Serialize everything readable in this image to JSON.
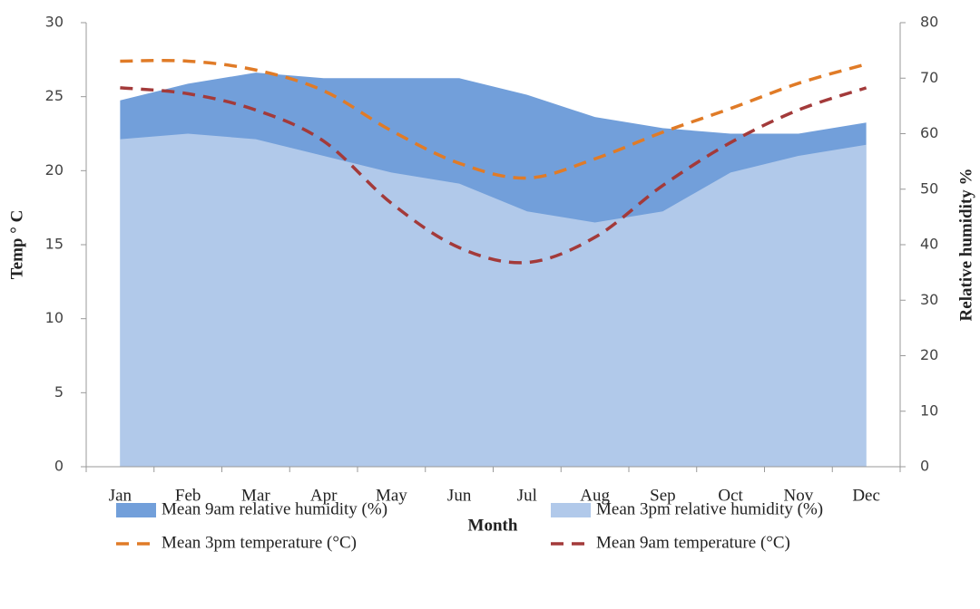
{
  "chart_data": {
    "type": "area-line",
    "x_label": "Month",
    "y_label": "Temp ° C",
    "y2_label": "Relative humidity %",
    "categories": [
      "Jan",
      "Feb",
      "Mar",
      "Apr",
      "May",
      "Jun",
      "Jul",
      "Aug",
      "Sep",
      "Oct",
      "Nov",
      "Dec"
    ],
    "ylim": [
      0,
      30
    ],
    "yticks": [
      0,
      5,
      10,
      15,
      20,
      25,
      30
    ],
    "y2lim": [
      0,
      80
    ],
    "y2ticks": [
      0,
      10,
      20,
      30,
      40,
      50,
      60,
      70,
      80
    ],
    "series": [
      {
        "name": "Mean 9am relative humidity (%)",
        "kind": "area",
        "axis": "y2",
        "color": "#729fda",
        "values": [
          66,
          69,
          71,
          70,
          70,
          70,
          67,
          63,
          61,
          60,
          60,
          62
        ]
      },
      {
        "name": "Mean 3pm relative humidity (%)",
        "kind": "area",
        "axis": "y2",
        "color": "#b1c9ea",
        "values": [
          59,
          60,
          59,
          56,
          53,
          51,
          46,
          44,
          46,
          53,
          56,
          58
        ]
      },
      {
        "name": "Mean 3pm temperature (°C)",
        "kind": "line",
        "color": "#e07b27",
        "values": [
          27.4,
          27.4,
          26.8,
          25.4,
          22.7,
          20.5,
          19.5,
          20.8,
          22.6,
          24.2,
          25.9,
          27.2
        ]
      },
      {
        "name": "Mean 9am temperature (°C)",
        "kind": "line",
        "color": "#a33a3a",
        "values": [
          25.6,
          25.2,
          24.1,
          22.0,
          17.8,
          14.8,
          13.8,
          15.5,
          19.0,
          21.9,
          24.1,
          25.6
        ]
      }
    ]
  }
}
